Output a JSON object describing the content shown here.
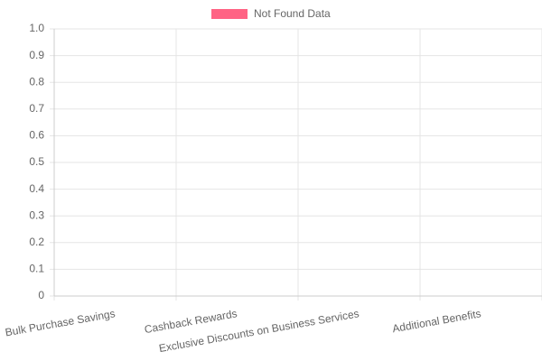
{
  "chart_data": {
    "type": "bar",
    "categories": [
      "Bulk Purchase Savings",
      "Cashback Rewards",
      "Exclusive Discounts on Business Services",
      "Additional Benefits"
    ],
    "series": [
      {
        "name": "Not Found Data",
        "color": "#ff6384",
        "values": [
          null,
          null,
          null,
          null
        ]
      }
    ],
    "ylim": [
      0,
      1
    ],
    "yticks": [
      0,
      0.1,
      0.2,
      0.3,
      0.4,
      0.5,
      0.6,
      0.7,
      0.8,
      0.9,
      {
        "value": 1,
        "label": "1.0"
      }
    ],
    "grid": true,
    "legend": "top"
  }
}
